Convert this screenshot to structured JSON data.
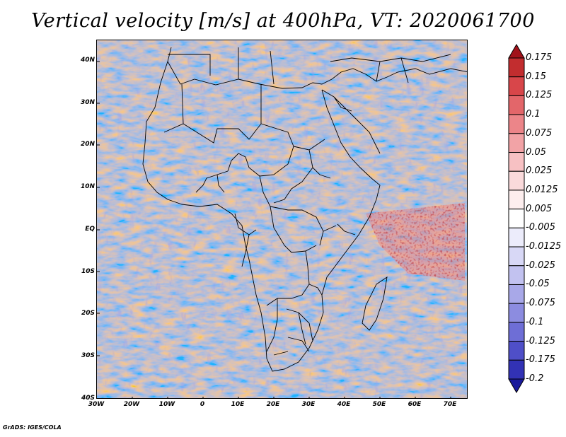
{
  "title": "Vertical velocity [m/s] at 400hPa, VT: 2020061700",
  "footer": "GrADS: IGES/COLA",
  "map": {
    "lat_labels": [
      "40N",
      "30N",
      "20N",
      "10N",
      "EQ",
      "10S",
      "20S",
      "30S",
      "40S"
    ],
    "lon_labels": [
      "30W",
      "20W",
      "10W",
      "0",
      "10E",
      "20E",
      "30E",
      "40E",
      "50E",
      "60E",
      "70E"
    ],
    "lat_range": [
      -40,
      45
    ],
    "lon_range": [
      -30,
      75
    ]
  },
  "colorbar": {
    "levels": [
      "0.175",
      "0.15",
      "0.125",
      "0.1",
      "0.075",
      "0.05",
      "0.025",
      "0.0125",
      "0.005",
      "-0.005",
      "-0.0125",
      "-0.025",
      "-0.05",
      "-0.075",
      "-0.1",
      "-0.125",
      "-0.175",
      "-0.2"
    ],
    "colors": [
      "#a1121a",
      "#c22d2f",
      "#d8464a",
      "#e3666a",
      "#ec8589",
      "#f2a3a6",
      "#f7c1c3",
      "#fadadb",
      "#fdeeee",
      "#ffffff",
      "#ececfb",
      "#d8d8f6",
      "#c2c2f0",
      "#a8a8e8",
      "#8c8ce0",
      "#6e6ed6",
      "#4f4fc8",
      "#3232b5",
      "#1a1a9c"
    ]
  },
  "colors": {
    "background": "#ffffff",
    "ocean_base": "#c9c9f0",
    "up_motion": "#e06a6a",
    "down_motion": "#6060d0",
    "border": "#000000"
  }
}
